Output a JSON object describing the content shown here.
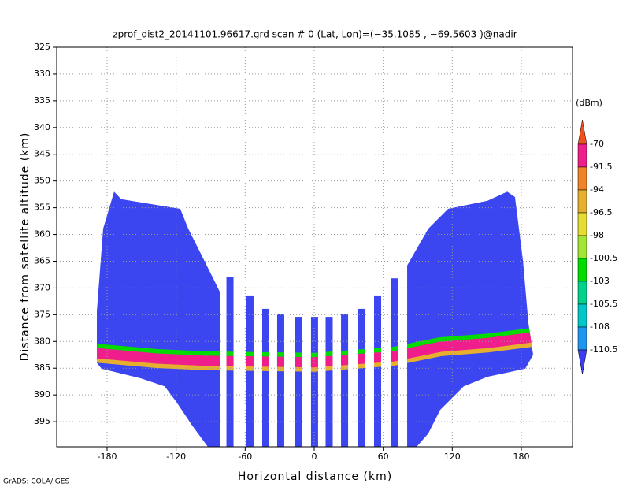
{
  "chart_data": {
    "type": "shaded-profile",
    "title": "zprof_dist2_20141101.96617.grd  scan # 0  (Lat, Lon)=(−35.1085 , −69.5603 )@nadir",
    "x_label": "Horizontal distance (km)",
    "y_label": "Distance from satellite altitude (km)",
    "footer": "GrADS: COLA/IGES",
    "xlim": [
      -223.8,
      224.5
    ],
    "ylim": [
      325,
      399.7
    ],
    "y_inverted": true,
    "xticks": [
      -180,
      -120,
      -60,
      0,
      60,
      120,
      180
    ],
    "yticks": [
      325,
      330,
      335,
      340,
      345,
      350,
      355,
      360,
      365,
      370,
      375,
      380,
      385,
      390,
      395
    ],
    "grid": true,
    "swath_color": "#3c46f0",
    "swath_blocks": [
      {
        "x": [
          -188.9,
          -183.4,
          -173.9,
          -167.7,
          -150.6,
          -116.4,
          -109.5,
          -99.2,
          -89,
          -82.1,
          -82.1,
          -92.4,
          -106.1,
          -119.8,
          -130,
          -150.6,
          -184.8,
          -188.9
        ],
        "y": [
          374.4,
          358.9,
          352,
          353.4,
          354,
          355.2,
          358.9,
          363.3,
          367.7,
          370.7,
          399.7,
          399.7,
          395.7,
          391.3,
          388.4,
          386.9,
          385.1,
          384
        ]
      },
      {
        "x": [
          80.8,
          99.2,
          116.4,
          150.6,
          167.7,
          174.5,
          181.4,
          186.2,
          190.3,
          183.4,
          150.6,
          130,
          109.5,
          99.2,
          89,
          80.8
        ],
        "y": [
          365.8,
          358.9,
          355.2,
          353.7,
          352,
          353,
          364.8,
          376.6,
          382.5,
          385.1,
          386.6,
          388.4,
          392.8,
          397.2,
          399.7,
          399.7
        ]
      }
    ],
    "stripes": {
      "x": [
        -73.2,
        -55.8,
        -42.1,
        -29.1,
        -13.7,
        0.3,
        13,
        26.4,
        41.4,
        55.1,
        69.8
      ],
      "top": [
        368,
        371.4,
        373.9,
        374.8,
        375.4,
        375.4,
        375.4,
        374.8,
        373.9,
        371.4,
        368.2
      ]
    },
    "surface_band": {
      "color": "#f01e8c",
      "x": [
        -188.9,
        -136.9,
        -95.8,
        0,
        68.4,
        109.5,
        150.6,
        190.3
      ],
      "y": [
        382.2,
        383.2,
        383.6,
        383.9,
        382.8,
        381,
        380.3,
        379.2
      ]
    },
    "colorbar": {
      "unit": "(dBm)",
      "levels": [
        -70,
        -91.5,
        -94,
        -96.5,
        -98,
        -100.5,
        -103,
        -105.5,
        -108,
        -110.5
      ],
      "colors": [
        "#f0501e",
        "#f01e8c",
        "#f08228",
        "#e6af2d",
        "#e6dc32",
        "#a0e632",
        "#00dc00",
        "#00d28c",
        "#00c8c8",
        "#1e96f0",
        "#3c3cf0"
      ]
    }
  }
}
